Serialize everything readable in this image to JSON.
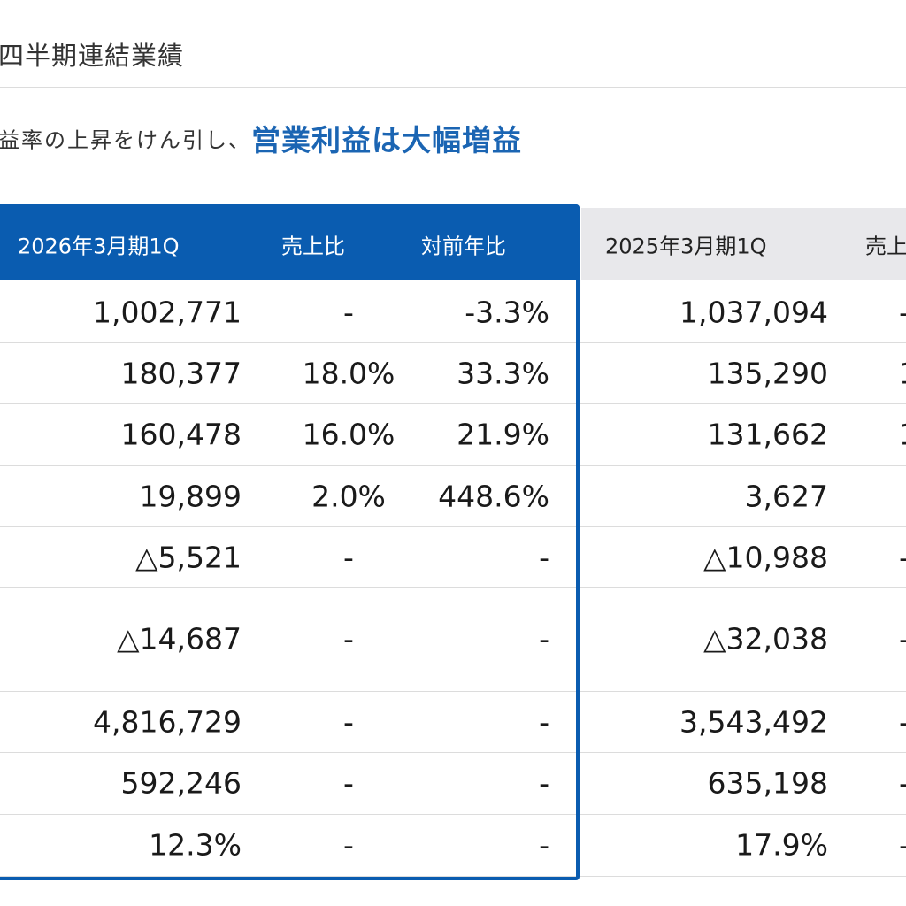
{
  "header": {
    "title": "四半期連結業績",
    "lead_plain": "益率の上昇をけん引し、",
    "lead_emphasis": "営業利益は大幅増益"
  },
  "table": {
    "current": {
      "period": "2026年3月期1Q",
      "ratio_label": "売上比",
      "yoy_label": "対前年比"
    },
    "previous": {
      "period": "2025年3月期1Q",
      "ratio_label": "売上"
    },
    "rows": [
      {
        "cur_value": "1,002,771",
        "cur_ratio": "-",
        "cur_yoy": "-3.3%",
        "prev_value": "1,037,094",
        "prev_ratio": "-"
      },
      {
        "cur_value": "180,377",
        "cur_ratio": "18.0%",
        "cur_yoy": "33.3%",
        "prev_value": "135,290",
        "prev_ratio": "1"
      },
      {
        "cur_value": "160,478",
        "cur_ratio": "16.0%",
        "cur_yoy": "21.9%",
        "prev_value": "131,662",
        "prev_ratio": "1"
      },
      {
        "cur_value": "19,899",
        "cur_ratio": "2.0%",
        "cur_yoy": "448.6%",
        "prev_value": "3,627",
        "prev_ratio": ""
      },
      {
        "cur_value": "△5,521",
        "cur_ratio": "-",
        "cur_yoy": "-",
        "prev_value": "△10,988",
        "prev_ratio": "-"
      },
      {
        "cur_value": "△14,687",
        "cur_ratio": "-",
        "cur_yoy": "-",
        "prev_value": "△32,038",
        "prev_ratio": "-"
      },
      {
        "cur_value": "4,816,729",
        "cur_ratio": "-",
        "cur_yoy": "-",
        "prev_value": "3,543,492",
        "prev_ratio": "-"
      },
      {
        "cur_value": "592,246",
        "cur_ratio": "-",
        "cur_yoy": "-",
        "prev_value": "635,198",
        "prev_ratio": "-"
      },
      {
        "cur_value": "12.3%",
        "cur_ratio": "-",
        "cur_yoy": "-",
        "prev_value": "17.9%",
        "prev_ratio": "-"
      }
    ]
  },
  "colors": {
    "accent": "#0a5cb0",
    "emphasis_text": "#1b65b3",
    "previous_header_bg": "#e8e8eb",
    "rule": "#dcdcdc"
  }
}
